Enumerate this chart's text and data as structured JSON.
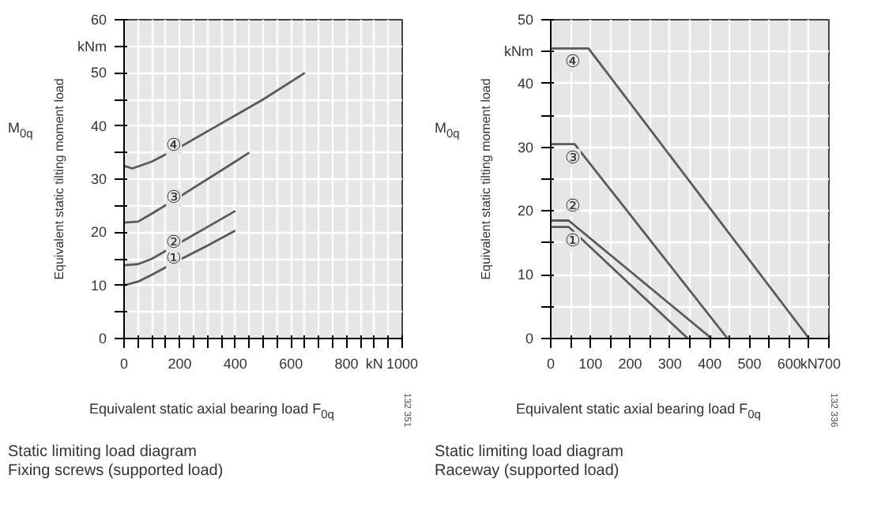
{
  "chart_data": [
    {
      "type": "line",
      "title": "Static limiting load diagram",
      "subtitle": "Fixing screws (supported load)",
      "xlabel": "Equivalent static axial bearing load F$_{0q}$",
      "ylabel": "Equivalent static tilting moment load",
      "xlim": [
        0,
        1000
      ],
      "ylim": [
        0,
        60
      ],
      "xticks": [
        0,
        {
          "value": 50,
          "label": null
        },
        {
          "value": 100,
          "label": null
        },
        {
          "value": 150,
          "label": null
        },
        200,
        {
          "value": 250,
          "label": null
        },
        {
          "value": 300,
          "label": null
        },
        {
          "value": 350,
          "label": null
        },
        400,
        {
          "value": 450,
          "label": null
        },
        {
          "value": 500,
          "label": null
        },
        {
          "value": 550,
          "label": null
        },
        600,
        {
          "value": 650,
          "label": null
        },
        {
          "value": 700,
          "label": null
        },
        {
          "value": 750,
          "label": null
        },
        800,
        {
          "value": 850,
          "label": null
        },
        {
          "value": 900,
          "label": "kN"
        },
        {
          "value": 950,
          "label": null
        },
        1000
      ],
      "yticks": [
        0,
        {
          "value": 5,
          "label": null
        },
        10,
        {
          "value": 15,
          "label": null
        },
        20,
        {
          "value": 25,
          "label": null
        },
        30,
        {
          "value": 35,
          "label": null
        },
        40,
        {
          "value": 45,
          "label": null
        },
        50,
        {
          "value": 55,
          "label": "kNm"
        },
        60
      ],
      "grid": true,
      "line_style": "solid",
      "series": [
        {
          "name": "①",
          "color": "#5a5a5a",
          "x": [
            0,
            50,
            100,
            200,
            300,
            400
          ],
          "values": [
            10,
            10.7,
            12,
            14.8,
            17.5,
            20.3
          ]
        },
        {
          "name": "②",
          "color": "#5a5a5a",
          "x": [
            0,
            50,
            100,
            200,
            300,
            400
          ],
          "values": [
            13.8,
            14,
            15,
            18,
            21,
            24
          ]
        },
        {
          "name": "③",
          "color": "#5a5a5a",
          "x": [
            0,
            50,
            100,
            200,
            300,
            400,
            450
          ],
          "values": [
            21.8,
            22,
            23.5,
            26.7,
            30,
            33.3,
            35
          ]
        },
        {
          "name": "④",
          "color": "#5a5a5a",
          "x": [
            0,
            30,
            100,
            200,
            300,
            400,
            500,
            650
          ],
          "values": [
            32.5,
            32,
            33.3,
            36,
            39,
            42,
            45,
            50
          ]
        }
      ],
      "annotations": [
        "M$_{0q}$",
        "132 351"
      ]
    },
    {
      "type": "line",
      "title": "Static limiting load diagram",
      "subtitle": "Raceway (supported load)",
      "xlabel": "Equivalent static axial bearing load F$_{0q}$",
      "ylabel": "Equivalent static tilting moment load",
      "xlim": [
        0,
        700
      ],
      "ylim": [
        0,
        50
      ],
      "xticks": [
        0,
        {
          "value": 50,
          "label": null
        },
        100,
        {
          "value": 150,
          "label": null
        },
        200,
        {
          "value": 250,
          "label": null
        },
        300,
        {
          "value": 350,
          "label": null
        },
        400,
        {
          "value": 450,
          "label": null
        },
        500,
        {
          "value": 550,
          "label": null
        },
        600,
        {
          "value": 650,
          "label": "kN"
        },
        700
      ],
      "yticks": [
        0,
        {
          "value": 5,
          "label": null
        },
        10,
        {
          "value": 15,
          "label": null
        },
        20,
        {
          "value": 25,
          "label": null
        },
        30,
        {
          "value": 35,
          "label": null
        },
        40,
        {
          "value": 45,
          "label": "kNm"
        },
        50
      ],
      "grid": true,
      "line_style": "solid",
      "series": [
        {
          "name": "①",
          "color": "#5a5a5a",
          "x": [
            0,
            45,
            345
          ],
          "values": [
            17.5,
            17.5,
            0
          ]
        },
        {
          "name": "②",
          "color": "#5a5a5a",
          "x": [
            0,
            45,
            405
          ],
          "values": [
            18.5,
            18.5,
            0
          ]
        },
        {
          "name": "③",
          "color": "#5a5a5a",
          "x": [
            0,
            60,
            445
          ],
          "values": [
            30.5,
            30.5,
            0
          ]
        },
        {
          "name": "④",
          "color": "#5a5a5a",
          "x": [
            0,
            95,
            650
          ],
          "values": [
            45.5,
            45.5,
            0
          ]
        }
      ],
      "annotations": [
        "M$_{0q}$",
        "132 336"
      ]
    }
  ]
}
